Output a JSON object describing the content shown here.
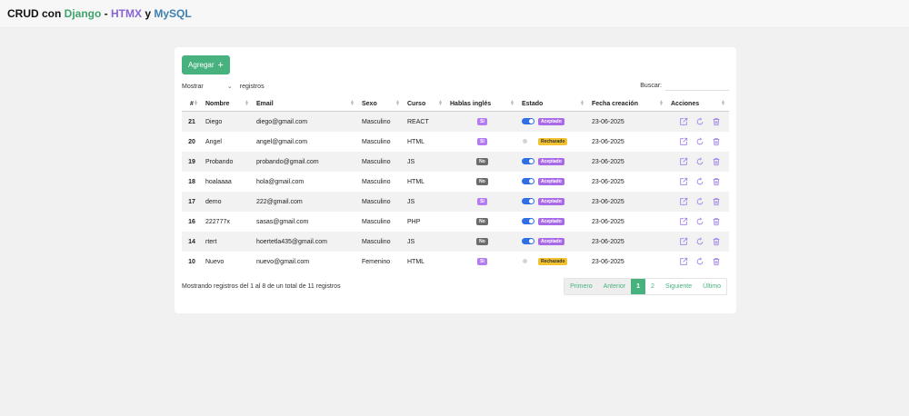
{
  "header": {
    "brand": {
      "part1": "CRUD con ",
      "django": "Django",
      "sep": " - ",
      "htmx": "HTMX",
      "y": " y ",
      "mysql": "MySQL"
    },
    "colors": {
      "django": "#3fa36b",
      "htmx": "#8a63d2",
      "mysql": "#3d7fb0"
    }
  },
  "toolbar": {
    "add_label": "Agregar",
    "add_icon": "plus-icon",
    "show_label": "Mostrar",
    "records_label": "registros",
    "page_length_value": "",
    "search_label": "Buscar:",
    "search_value": ""
  },
  "table": {
    "columns": [
      "#",
      "Nombre",
      "Email",
      "Sexo",
      "Curso",
      "Hablas inglés",
      "Estado",
      "Fecha creación",
      "Acciones"
    ],
    "rows": [
      {
        "id": "21",
        "nombre": "Diego",
        "email": "diego@gmail.com",
        "sexo": "Masculino",
        "curso": "REACT",
        "ingles": "Si",
        "activo": true,
        "estado": "Aceptado",
        "fecha": "23-06-2025"
      },
      {
        "id": "20",
        "nombre": "Angel",
        "email": "angel@gmail.com",
        "sexo": "Masculino",
        "curso": "HTML",
        "ingles": "Si",
        "activo": false,
        "estado": "Rechazado",
        "fecha": "23-06-2025"
      },
      {
        "id": "19",
        "nombre": "Probando",
        "email": "probando@gmail.com",
        "sexo": "Masculino",
        "curso": "JS",
        "ingles": "No",
        "activo": true,
        "estado": "Aceptado",
        "fecha": "23-06-2025"
      },
      {
        "id": "18",
        "nombre": "hoalaaaa",
        "email": "hola@gmail.com",
        "sexo": "Masculino",
        "curso": "HTML",
        "ingles": "No",
        "activo": true,
        "estado": "Aceptado",
        "fecha": "23-06-2025"
      },
      {
        "id": "17",
        "nombre": "demo",
        "email": "222@gmail.com",
        "sexo": "Masculino",
        "curso": "JS",
        "ingles": "Si",
        "activo": true,
        "estado": "Aceptado",
        "fecha": "23-06-2025"
      },
      {
        "id": "16",
        "nombre": "222777x",
        "email": "sasas@gmail.com",
        "sexo": "Masculino",
        "curso": "PHP",
        "ingles": "No",
        "activo": true,
        "estado": "Aceptado",
        "fecha": "23-06-2025"
      },
      {
        "id": "14",
        "nombre": "rtert",
        "email": "hoertetla435@gmail.com",
        "sexo": "Masculino",
        "curso": "JS",
        "ingles": "No",
        "activo": true,
        "estado": "Aceptado",
        "fecha": "23-06-2025"
      },
      {
        "id": "10",
        "nombre": "Nuevo",
        "email": "nuevo@gmail.com",
        "sexo": "Femenino",
        "curso": "HTML",
        "ingles": "Si",
        "activo": false,
        "estado": "Rechazado",
        "fecha": "23-06-2025"
      }
    ],
    "action_icons": [
      "external-link-icon",
      "refresh-icon",
      "trash-icon"
    ],
    "action_color": "#9b7fe6"
  },
  "footer": {
    "info": "Mostrando registros del 1 al 8 de un total de 11 registros",
    "pager": {
      "first": "Primero",
      "prev": "Anterior",
      "pages": [
        "1",
        "2"
      ],
      "active": "1",
      "next": "Siguiente",
      "last": "Último"
    }
  }
}
